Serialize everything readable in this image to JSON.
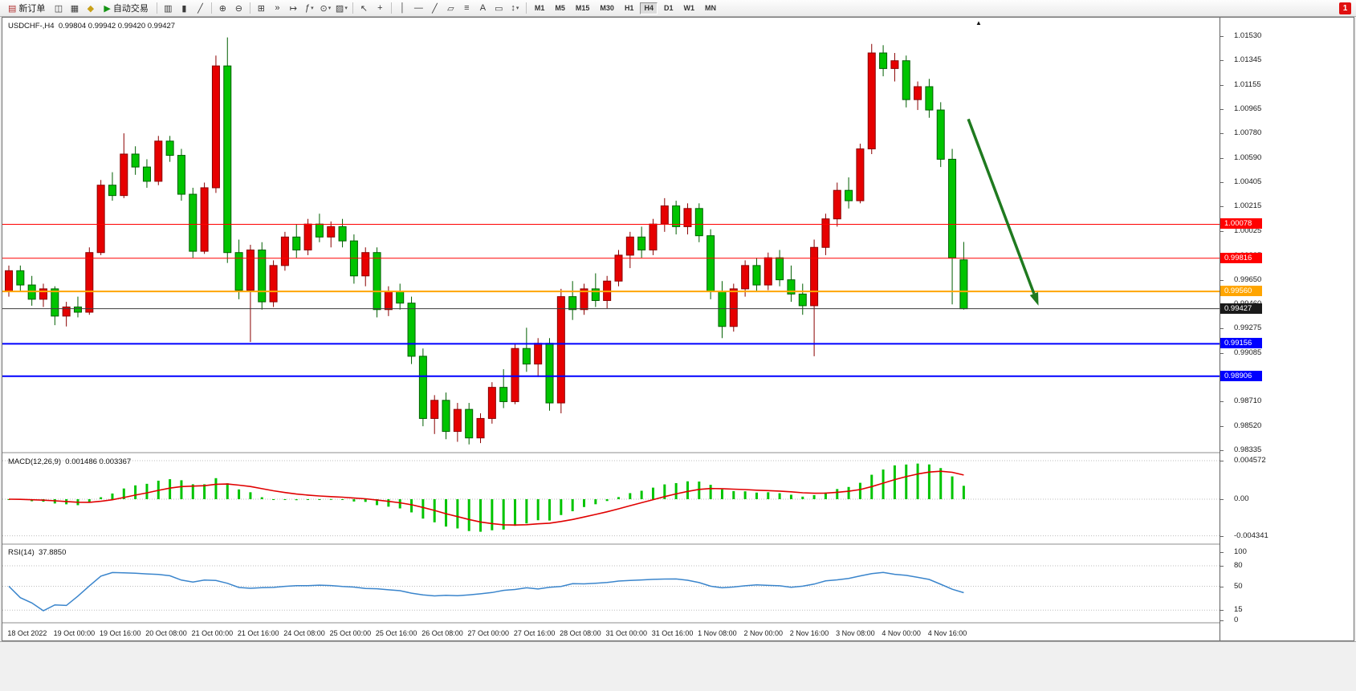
{
  "toolbar": {
    "items": [
      {
        "type": "button",
        "name": "new-order-button",
        "glyph": "▤",
        "glyph_color": "#b03030",
        "label": "新订单"
      },
      {
        "type": "icon",
        "name": "chart-window-icon",
        "glyph": "◫"
      },
      {
        "type": "icon",
        "name": "profiles-icon",
        "glyph": "▦"
      },
      {
        "type": "icon",
        "name": "strategy-tester-icon",
        "glyph": "◆",
        "glyph_color": "#c8a018"
      },
      {
        "type": "button",
        "name": "autotrading-button",
        "glyph": "▶",
        "glyph_color": "#149414",
        "label": "自动交易"
      },
      {
        "type": "sep"
      },
      {
        "type": "icon",
        "name": "bar-chart-mode-icon",
        "glyph": "▥"
      },
      {
        "type": "icon",
        "name": "candlestick-mode-icon",
        "glyph": "▮"
      },
      {
        "type": "icon",
        "name": "line-chart-mode-icon",
        "glyph": "╱"
      },
      {
        "type": "sep"
      },
      {
        "type": "icon",
        "name": "zoom-in-icon",
        "glyph": "⊕"
      },
      {
        "type": "icon",
        "name": "zoom-out-icon",
        "glyph": "⊖"
      },
      {
        "type": "sep"
      },
      {
        "type": "icon",
        "name": "tile-windows-icon",
        "glyph": "⊞"
      },
      {
        "type": "icon",
        "name": "auto-scroll-icon",
        "glyph": "»"
      },
      {
        "type": "icon",
        "name": "chart-shift-icon",
        "glyph": "↦"
      },
      {
        "type": "icon",
        "name": "indicators-icon",
        "glyph": "ƒ",
        "dropdown": true
      },
      {
        "type": "icon",
        "name": "periods-menu-icon",
        "glyph": "⊙",
        "dropdown": true
      },
      {
        "type": "icon",
        "name": "templates-icon",
        "glyph": "▨",
        "dropdown": true
      },
      {
        "type": "sep"
      },
      {
        "type": "icon",
        "name": "cursor-icon",
        "glyph": "↖"
      },
      {
        "type": "icon",
        "name": "crosshair-icon",
        "glyph": "+"
      },
      {
        "type": "sep"
      },
      {
        "type": "icon",
        "name": "vertical-line-tool-icon",
        "glyph": "│"
      },
      {
        "type": "icon",
        "name": "horizontal-line-tool-icon",
        "glyph": "—"
      },
      {
        "type": "icon",
        "name": "trendline-tool-icon",
        "glyph": "╱"
      },
      {
        "type": "icon",
        "name": "channel-tool-icon",
        "glyph": "▱"
      },
      {
        "type": "icon",
        "name": "fibonacci-tool-icon",
        "glyph": "≡"
      },
      {
        "type": "icon",
        "name": "text-tool-icon",
        "glyph": "A"
      },
      {
        "type": "icon",
        "name": "label-tool-icon",
        "glyph": "▭"
      },
      {
        "type": "icon",
        "name": "arrows-tool-icon",
        "glyph": "↕",
        "dropdown": true
      },
      {
        "type": "sep"
      }
    ],
    "timeframes": [
      "M1",
      "M5",
      "M15",
      "M30",
      "H1",
      "H4",
      "D1",
      "W1",
      "MN"
    ],
    "active_timeframe": "H4",
    "notification_count": "1"
  },
  "chart": {
    "title": "USDCHF-,H4",
    "ohlc_text": "0.99804 0.99942 0.99420 0.99427",
    "shift_marker": "▲",
    "macd_label": "MACD(12,26,9)",
    "macd_values": "0.001486 0.003367",
    "rsi_label": "RSI(14)",
    "rsi_value": "37.8850"
  },
  "chart_data": {
    "type": "candlestick",
    "symbol": "USDCHF-",
    "timeframe": "H4",
    "up_color": "#e60000",
    "down_color": "#00c400",
    "price_axis": [
      1.0153,
      1.01345,
      1.01155,
      1.00965,
      1.0078,
      1.0059,
      1.00405,
      1.00215,
      1.00025,
      0.99835,
      0.9965,
      0.9946,
      0.99275,
      0.99085,
      0.98895,
      0.9871,
      0.9852,
      0.98335
    ],
    "candles": [
      [
        0.9956,
        0.9976,
        0.9952,
        0.9972
      ],
      [
        0.9972,
        0.9976,
        0.9956,
        0.9961
      ],
      [
        0.9961,
        0.9968,
        0.9945,
        0.995
      ],
      [
        0.995,
        0.9962,
        0.9944,
        0.9958
      ],
      [
        0.9958,
        0.996,
        0.993,
        0.9937
      ],
      [
        0.9937,
        0.9948,
        0.9929,
        0.9944
      ],
      [
        0.9944,
        0.9952,
        0.9936,
        0.994
      ],
      [
        0.994,
        0.999,
        0.9938,
        0.9986
      ],
      [
        0.9986,
        1.0042,
        0.9984,
        1.0038
      ],
      [
        1.0038,
        1.0048,
        1.0026,
        1.003
      ],
      [
        1.003,
        1.0078,
        1.0028,
        1.0062
      ],
      [
        1.0062,
        1.0068,
        1.0046,
        1.0052
      ],
      [
        1.0052,
        1.0058,
        1.0036,
        1.0041
      ],
      [
        1.0041,
        1.0076,
        1.0038,
        1.0072
      ],
      [
        1.0072,
        1.0076,
        1.0056,
        1.0061
      ],
      [
        1.0061,
        1.0066,
        1.0026,
        1.0031
      ],
      [
        1.0031,
        1.0036,
        0.9982,
        0.9987
      ],
      [
        0.9987,
        1.004,
        0.9985,
        1.0036
      ],
      [
        1.0036,
        1.0138,
        1.0032,
        1.013
      ],
      [
        1.013,
        1.0152,
        0.9978,
        0.9986
      ],
      [
        0.9986,
        0.9996,
        0.995,
        0.9957
      ],
      [
        0.9957,
        0.9992,
        0.9917,
        0.9988
      ],
      [
        0.9988,
        0.9994,
        0.9942,
        0.9948
      ],
      [
        0.9948,
        0.998,
        0.9944,
        0.9976
      ],
      [
        0.9976,
        1.0002,
        0.9972,
        0.9998
      ],
      [
        0.9998,
        1.0008,
        0.9982,
        0.9988
      ],
      [
        0.9988,
        1.0012,
        0.9984,
        1.0008
      ],
      [
        1.0008,
        1.0016,
        0.9994,
        0.9998
      ],
      [
        0.9998,
        1.001,
        0.999,
        1.0006
      ],
      [
        1.0006,
        1.0012,
        0.999,
        0.9995
      ],
      [
        0.9995,
        1.0,
        0.9962,
        0.9968
      ],
      [
        0.9968,
        0.999,
        0.996,
        0.9986
      ],
      [
        0.9986,
        0.999,
        0.9936,
        0.9942
      ],
      [
        0.9942,
        0.996,
        0.9937,
        0.9956
      ],
      [
        0.9956,
        0.9962,
        0.9942,
        0.9947
      ],
      [
        0.9947,
        0.9952,
        0.99,
        0.9906
      ],
      [
        0.9906,
        0.9912,
        0.9852,
        0.9858
      ],
      [
        0.9858,
        0.9876,
        0.9846,
        0.9872
      ],
      [
        0.9872,
        0.9878,
        0.9842,
        0.9848
      ],
      [
        0.9848,
        0.987,
        0.984,
        0.9865
      ],
      [
        0.9865,
        0.987,
        0.9838,
        0.9843
      ],
      [
        0.9843,
        0.9862,
        0.9839,
        0.9858
      ],
      [
        0.9858,
        0.9886,
        0.9854,
        0.9882
      ],
      [
        0.9882,
        0.9896,
        0.9866,
        0.9871
      ],
      [
        0.9871,
        0.9916,
        0.9869,
        0.9912
      ],
      [
        0.9912,
        0.9928,
        0.9894,
        0.99
      ],
      [
        0.99,
        0.992,
        0.989,
        0.9916
      ],
      [
        0.9916,
        0.992,
        0.9864,
        0.987
      ],
      [
        0.987,
        0.9958,
        0.9862,
        0.9952
      ],
      [
        0.9952,
        0.9964,
        0.9934,
        0.9942
      ],
      [
        0.9942,
        0.9962,
        0.9938,
        0.9958
      ],
      [
        0.9958,
        0.997,
        0.9944,
        0.9949
      ],
      [
        0.9949,
        0.9968,
        0.9943,
        0.9964
      ],
      [
        0.9964,
        0.9988,
        0.996,
        0.9984
      ],
      [
        0.9984,
        1.0002,
        0.9974,
        0.9998
      ],
      [
        0.9998,
        1.0006,
        0.9982,
        0.9988
      ],
      [
        0.9988,
        1.0012,
        0.9984,
        1.0008
      ],
      [
        1.0008,
        1.0028,
        1.0002,
        1.0022
      ],
      [
        1.0022,
        1.0026,
        1.0,
        1.0006
      ],
      [
        1.0006,
        1.0024,
        1.0,
        1.002
      ],
      [
        1.002,
        1.0024,
        0.9994,
        0.9999
      ],
      [
        0.9999,
        1.0004,
        0.995,
        0.9956
      ],
      [
        0.9956,
        0.9964,
        0.992,
        0.9929
      ],
      [
        0.9929,
        0.9962,
        0.9925,
        0.9958
      ],
      [
        0.9958,
        0.998,
        0.9952,
        0.9976
      ],
      [
        0.9976,
        0.9982,
        0.9956,
        0.9961
      ],
      [
        0.9961,
        0.9986,
        0.9957,
        0.9982
      ],
      [
        0.9982,
        0.9988,
        0.996,
        0.9965
      ],
      [
        0.9965,
        0.9976,
        0.9948,
        0.9954
      ],
      [
        0.9954,
        0.9962,
        0.9938,
        0.9945
      ],
      [
        0.9945,
        0.9996,
        0.9906,
        0.999
      ],
      [
        0.999,
        1.0016,
        0.9984,
        1.0012
      ],
      [
        1.0012,
        1.004,
        1.0006,
        1.0034
      ],
      [
        1.0034,
        1.0044,
        1.002,
        1.0026
      ],
      [
        1.0026,
        1.007,
        1.0024,
        1.0066
      ],
      [
        1.0066,
        1.0147,
        1.0062,
        1.014
      ],
      [
        1.014,
        1.0146,
        1.0122,
        1.0128
      ],
      [
        1.0128,
        1.014,
        1.0118,
        1.0134
      ],
      [
        1.0134,
        1.0138,
        1.0098,
        1.0104
      ],
      [
        1.0104,
        1.0118,
        1.0096,
        1.0114
      ],
      [
        1.0114,
        1.012,
        1.009,
        1.0096
      ],
      [
        1.0096,
        1.0102,
        1.0052,
        1.0058
      ],
      [
        1.0058,
        1.0066,
        0.9946,
        0.9982
      ],
      [
        0.99804,
        0.99942,
        0.9942,
        0.99427
      ]
    ],
    "hlines": [
      {
        "price": 1.00078,
        "label": "1.00078",
        "color": "#ff0000",
        "width": 1
      },
      {
        "price": 0.99816,
        "label": "0.99816",
        "color": "#ff0000",
        "width": 1
      },
      {
        "price": 0.9956,
        "label": "0.99560",
        "color": "#ffa500",
        "width": 2
      },
      {
        "price": 0.99156,
        "label": "0.99156",
        "color": "#0000ff",
        "width": 2
      },
      {
        "price": 0.98906,
        "label": "0.98906",
        "color": "#0000ff",
        "width": 2
      }
    ],
    "current_price": {
      "value": 0.99427,
      "label": "0.99427",
      "badge_color": "#1a1a1a"
    },
    "arrow": {
      "from_index": 83.4,
      "from_price": 1.0089,
      "to_index": 89.5,
      "to_price": 0.9945,
      "color": "#1f7a1f"
    },
    "time_axis": [
      "18 Oct 2022",
      "19 Oct 00:00",
      "19 Oct 16:00",
      "20 Oct 08:00",
      "21 Oct 00:00",
      "21 Oct 16:00",
      "24 Oct 08:00",
      "25 Oct 00:00",
      "25 Oct 16:00",
      "26 Oct 08:00",
      "27 Oct 00:00",
      "27 Oct 16:00",
      "28 Oct 08:00",
      "31 Oct 00:00",
      "31 Oct 16:00",
      "1 Nov 08:00",
      "2 Nov 00:00",
      "2 Nov 16:00",
      "3 Nov 08:00",
      "4 Nov 00:00",
      "4 Nov 16:00"
    ],
    "macd": {
      "params": "12,26,9",
      "axis": [
        "0.004572",
        "0.00",
        "-0.004341"
      ],
      "axis_values": [
        0.004572,
        0,
        -0.004341
      ],
      "histogram_color": "#00c400",
      "signal_color": "#e00000"
    },
    "rsi": {
      "period": "14",
      "axis": [
        100,
        80,
        50,
        15,
        0
      ],
      "levels": [
        80,
        50,
        15
      ],
      "line_color": "#3a85cc"
    }
  }
}
